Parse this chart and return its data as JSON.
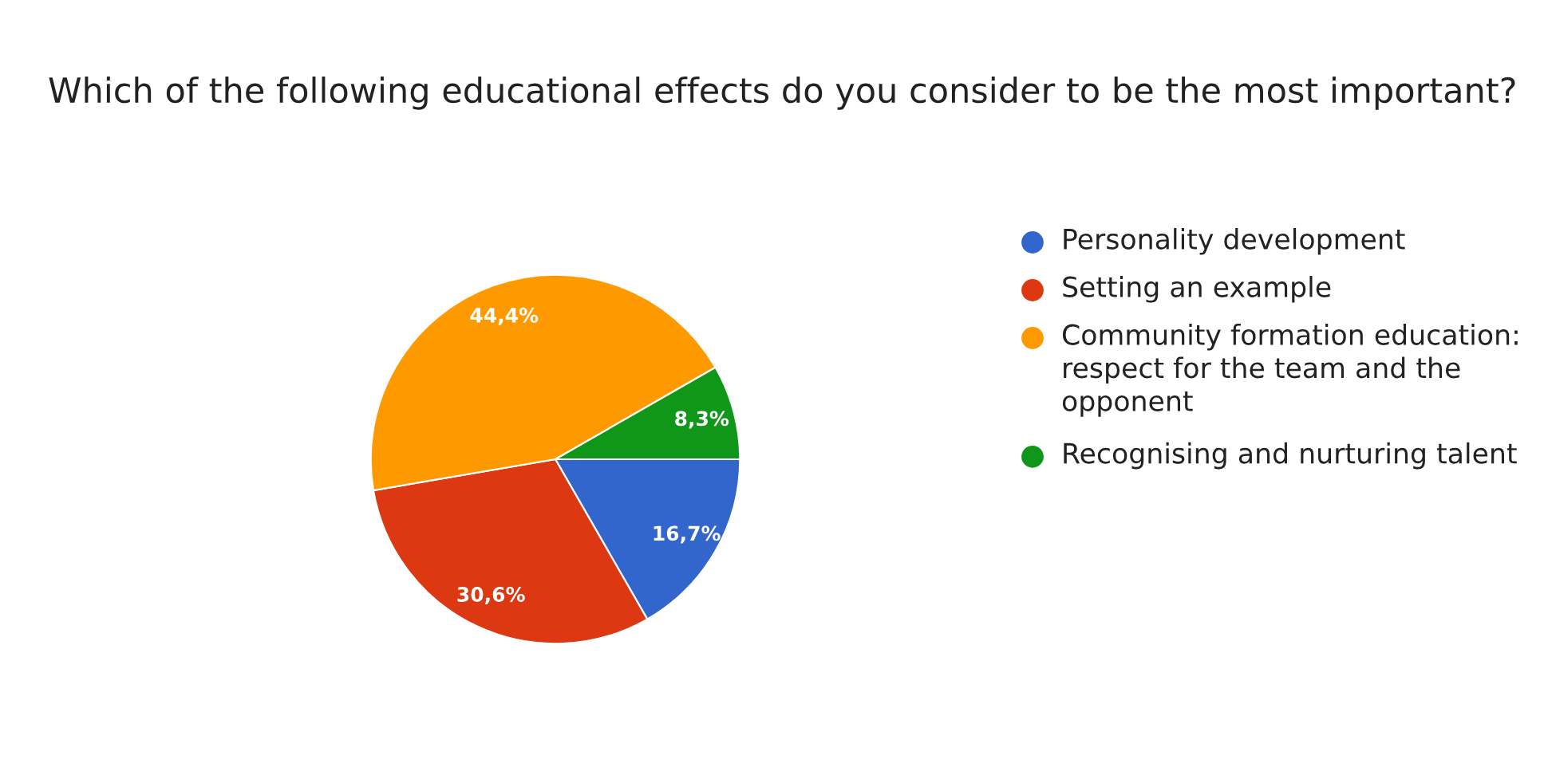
{
  "chart_data": {
    "type": "pie",
    "title": "Which of the following educational effects do you consider to be the most important?",
    "categories": [
      "Personality development",
      "Setting an example",
      "Community formation education: respect for the team and the opponent",
      "Recognising and nurturing talent"
    ],
    "values": [
      16.7,
      30.6,
      44.4,
      8.3
    ],
    "colors": [
      "#3366cc",
      "#dc3912",
      "#ff9900",
      "#109618"
    ],
    "value_labels": [
      "16,7%",
      "30,6%",
      "44,4%",
      "8,3%"
    ],
    "legend": "right"
  }
}
